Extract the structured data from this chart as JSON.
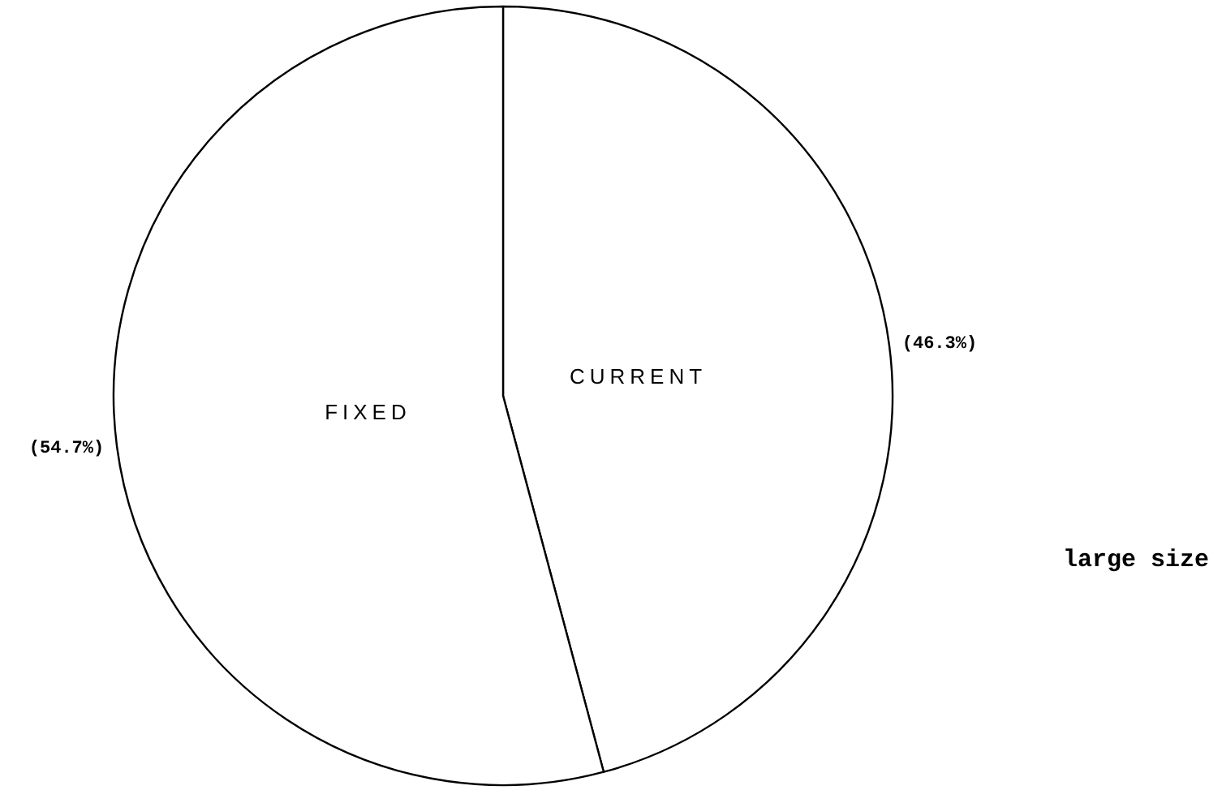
{
  "chart_data": {
    "type": "pie",
    "categories": [
      "CURRENT",
      "FIXED"
    ],
    "values": [
      46.3,
      54.7
    ],
    "colors": [
      "#ffffff",
      "#ffffff"
    ],
    "value_labels": [
      "(46.3%)",
      "(54.7%)"
    ],
    "annotations": [
      "large size"
    ]
  }
}
